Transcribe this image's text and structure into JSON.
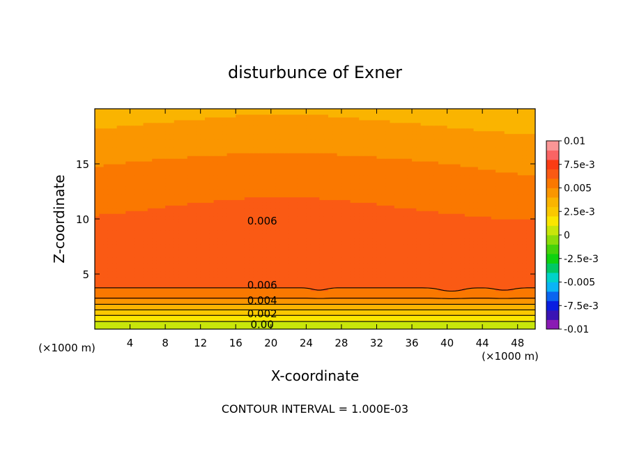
{
  "chart_data": {
    "type": "heatmap",
    "title": "disturbunce of Exner",
    "xlabel": "X-coordinate",
    "ylabel": "Z-coordinate",
    "x_unit_left": "(×1000 m)",
    "x_unit_right": "(×1000 m)",
    "xlim": [
      0,
      50
    ],
    "ylim": [
      0,
      20
    ],
    "x_ticks": [
      4,
      8,
      12,
      16,
      20,
      24,
      28,
      32,
      36,
      40,
      44,
      48
    ],
    "x_tick_labels": [
      "4",
      "8",
      "12",
      "16",
      "20",
      "24",
      "28",
      "32",
      "36",
      "40",
      "44",
      "48"
    ],
    "y_ticks": [
      5,
      10,
      15
    ],
    "y_tick_labels": [
      "5",
      "10",
      "15"
    ],
    "footer": "CONTOUR INTERVAL = 1.000E-03",
    "contour_interval": 0.001,
    "contour_labels": [
      {
        "text": "0.006",
        "x": 19,
        "z": 9.8
      },
      {
        "text": "0.006",
        "x": 19,
        "z": 4.0
      },
      {
        "text": "0.004",
        "x": 19,
        "z": 2.6
      },
      {
        "text": "0.002",
        "x": 19,
        "z": 1.4
      },
      {
        "text": "0.00",
        "x": 19,
        "z": 0.4
      }
    ],
    "profile_z": [
      0,
      0.5,
      1.0,
      1.5,
      2.0,
      2.5,
      3.0,
      3.5,
      4.0,
      5.0,
      6.0,
      7.0,
      8.0,
      9.0,
      10.0,
      11.0,
      12.0,
      13.0,
      14.0,
      15.0,
      16.0,
      17.0,
      18.0,
      19.0,
      20.0
    ],
    "profile_values": [
      0.0,
      0.0007,
      0.0015,
      0.0025,
      0.0035,
      0.0045,
      0.0053,
      0.0058,
      0.0062,
      0.0066,
      0.0069,
      0.0069,
      0.0067,
      0.0064,
      0.0061,
      0.0059,
      0.0057,
      0.0055,
      0.0052,
      0.005,
      0.0047,
      0.0044,
      0.0041,
      0.0038,
      0.0036
    ],
    "colorbar": {
      "min": -0.01,
      "max": 0.01,
      "tick_values": [
        0.01,
        0.0075,
        0.005,
        0.0025,
        0,
        -0.0025,
        -0.005,
        -0.0075,
        -0.01
      ],
      "tick_labels": [
        "0.01",
        "7.5e-3",
        "0.005",
        "2.5e-3",
        "0",
        "-2.5e-3",
        "-0.005",
        "-7.5e-3",
        "-0.01"
      ],
      "colors": [
        "#8a1ab4",
        "#3a14b4",
        "#0a1ee0",
        "#0a64f0",
        "#0ab4f5",
        "#00d2c8",
        "#00c864",
        "#0fd20f",
        "#46d20a",
        "#8cdc0a",
        "#c8e60a",
        "#fae600",
        "#fac800",
        "#fab400",
        "#fa9600",
        "#fa7800",
        "#fa5a14",
        "#fa3c14",
        "#fa6464",
        "#fa9696"
      ]
    }
  }
}
